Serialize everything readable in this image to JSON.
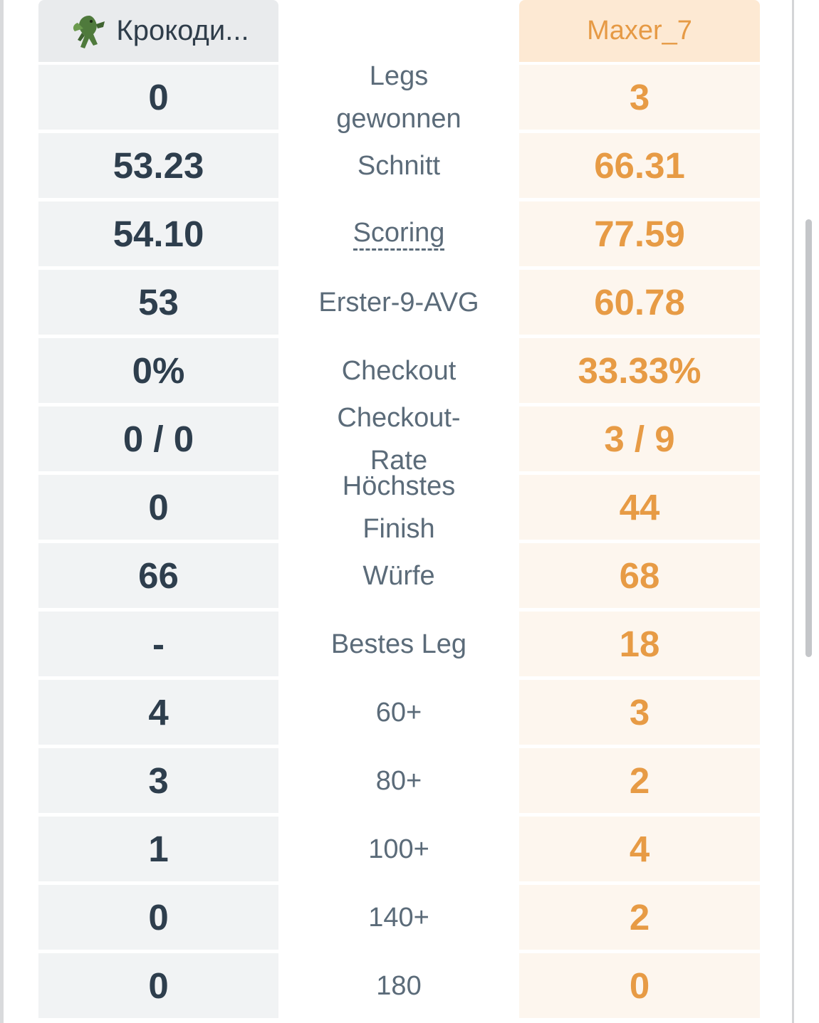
{
  "header": {
    "player1": "Крокоди...",
    "player2": "Maxer_7"
  },
  "colors": {
    "player1_text": "#2e3e4d",
    "player2_text": "#e79b45",
    "label_text": "#5b6b79",
    "player1_bg": "#f1f3f4",
    "player2_bg": "#fdf6ee"
  },
  "avatar_icon": "crocodile-icon",
  "rows": [
    {
      "label": "Legs gewonnen",
      "p1": "0",
      "p2": "3"
    },
    {
      "label": "Schnitt",
      "p1": "53.23",
      "p2": "66.31"
    },
    {
      "label": "Scoring",
      "p1": "54.10",
      "p2": "77.59"
    },
    {
      "label": "Erster-9-AVG",
      "p1": "53",
      "p2": "60.78"
    },
    {
      "label": "Checkout",
      "p1": "0%",
      "p2": "33.33%"
    },
    {
      "label": "Checkout-Rate",
      "p1": "0 / 0",
      "p2": "3 / 9"
    },
    {
      "label": "Höchstes Finish",
      "p1": "0",
      "p2": "44"
    },
    {
      "label": "Würfe",
      "p1": "66",
      "p2": "68"
    },
    {
      "label": "Bestes Leg",
      "p1": "-",
      "p2": "18"
    },
    {
      "label": "60+",
      "p1": "4",
      "p2": "3"
    },
    {
      "label": "80+",
      "p1": "3",
      "p2": "2"
    },
    {
      "label": "100+",
      "p1": "1",
      "p2": "4"
    },
    {
      "label": "140+",
      "p1": "0",
      "p2": "2"
    },
    {
      "label": "180",
      "p1": "0",
      "p2": "0"
    }
  ]
}
